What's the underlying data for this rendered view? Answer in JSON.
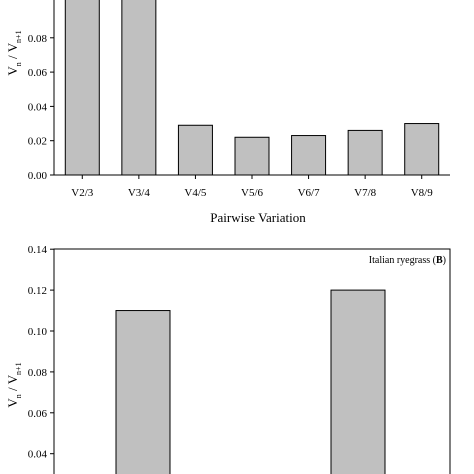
{
  "chart_data": [
    {
      "type": "bar",
      "panel_tag": "",
      "categories": [
        "V2/3",
        "V3/4",
        "V4/5",
        "V5/6",
        "V6/7",
        "V7/8",
        "V8/9"
      ],
      "values": [
        0.11,
        0.11,
        0.029,
        0.022,
        0.023,
        0.026,
        0.03
      ],
      "xlabel": "Pairwise Variation",
      "ylabel": {
        "main": "V",
        "sub1": "n",
        "sep": " / V",
        "sub2": "n+1"
      },
      "ylim": [
        0,
        0.1
      ],
      "yticks": [
        "0.00",
        "0.02",
        "0.04",
        "0.06",
        "0.08"
      ],
      "bar_color": "#c0c0c0"
    },
    {
      "type": "bar",
      "panel_tag": {
        "text": "Italian ryegrass (",
        "bold": "B",
        "close": ")"
      },
      "categories": [
        "",
        ""
      ],
      "values": [
        0.11,
        0.12
      ],
      "xlabel": "",
      "ylabel": {
        "main": "V",
        "sub1": "n",
        "sep": " / V",
        "sub2": "n+1"
      },
      "ylim": [
        0.02,
        0.14
      ],
      "yticks": [
        "0.04",
        "0.06",
        "0.08",
        "0.10",
        "0.12",
        "0.14"
      ],
      "bar_color": "#c0c0c0"
    }
  ]
}
